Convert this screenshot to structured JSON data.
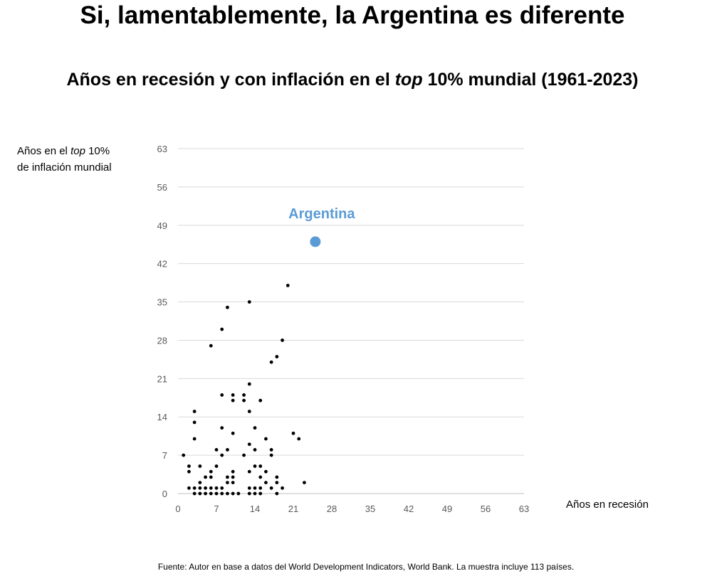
{
  "chart_data": {
    "type": "scatter",
    "title": "Si, lamentablemente, la Argentina es diferente",
    "subtitle_pre": "Años en recesión y con inflación en el ",
    "subtitle_em": "top",
    "subtitle_post": " 10% mundial (1961-2023)",
    "ylabel_pre": "Años en el ",
    "ylabel_em": "top",
    "ylabel_post": " 10%",
    "ylabel_line2": "de inflación mundial",
    "xlabel": "Años en recesión",
    "source": "Fuente: Autor en base a datos del World Development Indicators, World Bank. La muestra incluye 113 países.",
    "xlim": [
      0,
      63
    ],
    "ylim": [
      0,
      63
    ],
    "xticks": [
      0,
      7,
      14,
      21,
      28,
      35,
      42,
      49,
      56,
      63
    ],
    "yticks": [
      0,
      7,
      14,
      21,
      28,
      35,
      42,
      49,
      56,
      63
    ],
    "grid": true,
    "highlight": {
      "label": "Argentina",
      "x": 25,
      "y": 46,
      "color": "#5b9bd5"
    },
    "point_color": "#000000",
    "points": [
      [
        1,
        7
      ],
      [
        2,
        5
      ],
      [
        2,
        4
      ],
      [
        2,
        1
      ],
      [
        3,
        15
      ],
      [
        3,
        13
      ],
      [
        3,
        10
      ],
      [
        3,
        1
      ],
      [
        3,
        0
      ],
      [
        4,
        5
      ],
      [
        4,
        2
      ],
      [
        4,
        1
      ],
      [
        4,
        0
      ],
      [
        5,
        3
      ],
      [
        5,
        1
      ],
      [
        5,
        0
      ],
      [
        6,
        27
      ],
      [
        6,
        4
      ],
      [
        6,
        3
      ],
      [
        6,
        1
      ],
      [
        6,
        0
      ],
      [
        7,
        8
      ],
      [
        7,
        5
      ],
      [
        7,
        1
      ],
      [
        7,
        0
      ],
      [
        8,
        30
      ],
      [
        8,
        18
      ],
      [
        8,
        12
      ],
      [
        8,
        7
      ],
      [
        8,
        1
      ],
      [
        8,
        0
      ],
      [
        9,
        34
      ],
      [
        9,
        8
      ],
      [
        9,
        3
      ],
      [
        9,
        2
      ],
      [
        9,
        0
      ],
      [
        10,
        18
      ],
      [
        10,
        17
      ],
      [
        10,
        11
      ],
      [
        10,
        4
      ],
      [
        10,
        3
      ],
      [
        10,
        2
      ],
      [
        10,
        0
      ],
      [
        11,
        0
      ],
      [
        12,
        18
      ],
      [
        12,
        17
      ],
      [
        12,
        7
      ],
      [
        13,
        35
      ],
      [
        13,
        20
      ],
      [
        13,
        15
      ],
      [
        13,
        9
      ],
      [
        13,
        4
      ],
      [
        13,
        1
      ],
      [
        13,
        0
      ],
      [
        14,
        12
      ],
      [
        14,
        8
      ],
      [
        14,
        5
      ],
      [
        14,
        1
      ],
      [
        14,
        0
      ],
      [
        15,
        17
      ],
      [
        15,
        5
      ],
      [
        15,
        3
      ],
      [
        15,
        1
      ],
      [
        15,
        0
      ],
      [
        16,
        10
      ],
      [
        16,
        4
      ],
      [
        16,
        2
      ],
      [
        17,
        24
      ],
      [
        17,
        8
      ],
      [
        17,
        7
      ],
      [
        17,
        1
      ],
      [
        18,
        25
      ],
      [
        18,
        3
      ],
      [
        18,
        2
      ],
      [
        18,
        0
      ],
      [
        19,
        28
      ],
      [
        19,
        1
      ],
      [
        20,
        38
      ],
      [
        21,
        11
      ],
      [
        22,
        10
      ],
      [
        23,
        2
      ]
    ]
  }
}
